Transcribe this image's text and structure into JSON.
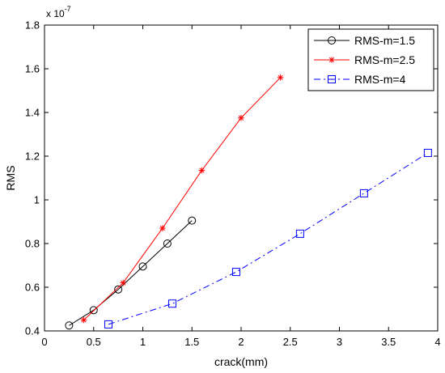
{
  "chart_data": {
    "type": "line",
    "xlabel": "crack(mm)",
    "ylabel": "RMS",
    "y_exponent_label": "x 10",
    "y_exponent_power": "-7",
    "xlim": [
      0,
      4
    ],
    "ylim": [
      0.4,
      1.8
    ],
    "x_ticks": [
      0,
      0.5,
      1,
      1.5,
      2,
      2.5,
      3,
      3.5,
      4
    ],
    "x_tick_labels": [
      "0",
      "0.5",
      "1",
      "1.5",
      "2",
      "2.5",
      "3",
      "3.5",
      "4"
    ],
    "y_ticks": [
      0.4,
      0.6,
      0.8,
      1.0,
      1.2,
      1.4,
      1.6,
      1.8
    ],
    "y_tick_labels": [
      "0.4",
      "0.6",
      "0.8",
      "1",
      "1.2",
      "1.4",
      "1.6",
      "1.8"
    ],
    "grid": false,
    "legend_position": "top-right",
    "series": [
      {
        "name": "RMS-m=1.5",
        "color": "#000000",
        "marker": "circle",
        "line_style": "solid",
        "x": [
          0.25,
          0.5,
          0.75,
          1.0,
          1.25,
          1.5
        ],
        "y": [
          0.425,
          0.495,
          0.59,
          0.695,
          0.8,
          0.905
        ]
      },
      {
        "name": "RMS-m=2.5",
        "color": "#ff0000",
        "marker": "asterisk",
        "line_style": "solid",
        "x": [
          0.4,
          0.8,
          1.2,
          1.6,
          2.0,
          2.4
        ],
        "y": [
          0.45,
          0.62,
          0.87,
          1.135,
          1.375,
          1.56
        ]
      },
      {
        "name": "RMS-m=4",
        "color": "#0000ff",
        "marker": "square",
        "line_style": "dashdot",
        "x": [
          0.65,
          1.3,
          1.95,
          2.6,
          3.25,
          3.9
        ],
        "y": [
          0.43,
          0.525,
          0.67,
          0.845,
          1.03,
          1.215
        ]
      }
    ]
  }
}
